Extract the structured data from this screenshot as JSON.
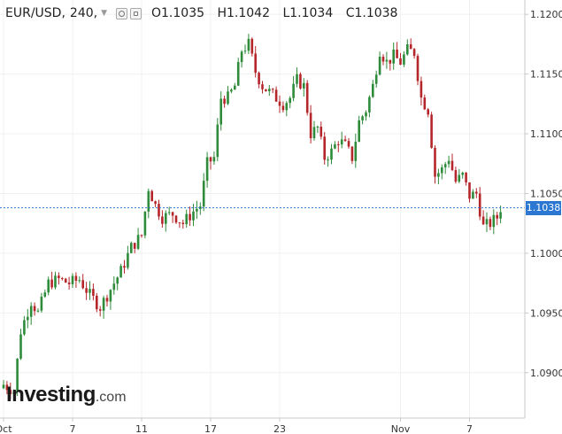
{
  "header": {
    "symbol": "EUR/USD,",
    "interval": "240,",
    "open_text": "O1.1035",
    "high_text": "H1.1042",
    "low_text": "L1.1034",
    "close_text": "C1.1038"
  },
  "logo": {
    "main": "Investing",
    "domain": ".com"
  },
  "colors": {
    "up": "#2e8b3a",
    "down": "#b5262a",
    "last_price": "#2c77d2",
    "grid": "#f0f0f0",
    "axis_text": "#333333"
  },
  "chart_data": {
    "type": "candlestick",
    "title": "",
    "xlabel": "",
    "ylabel": "",
    "ylim": [
      1.0862,
      1.1212
    ],
    "yticks": [
      1.09,
      1.095,
      1.1,
      1.105,
      1.11,
      1.115,
      1.12
    ],
    "ytick_labels": [
      "1.0900",
      "1.0950",
      "1.1000",
      "1.1050",
      "1.1100",
      "1.1150",
      "1.1200"
    ],
    "xticks": [
      {
        "label": "Oct",
        "index": 0
      },
      {
        "label": "7",
        "index": 20
      },
      {
        "label": "11",
        "index": 40
      },
      {
        "label": "17",
        "index": 60
      },
      {
        "label": "23",
        "index": 80
      },
      {
        "label": "Nov",
        "index": 115
      },
      {
        "label": "7",
        "index": 135
      }
    ],
    "last_price": "1.1038",
    "waypoints": [
      [
        0,
        1.089
      ],
      [
        3,
        1.0885
      ],
      [
        5,
        1.0935
      ],
      [
        8,
        1.096
      ],
      [
        10,
        1.095
      ],
      [
        13,
        1.0975
      ],
      [
        16,
        1.0978
      ],
      [
        19,
        1.0975
      ],
      [
        22,
        1.0978
      ],
      [
        25,
        1.0965
      ],
      [
        28,
        1.0955
      ],
      [
        31,
        1.097
      ],
      [
        34,
        1.0985
      ],
      [
        37,
        1.1005
      ],
      [
        40,
        1.1015
      ],
      [
        42,
        1.1055
      ],
      [
        44,
        1.104
      ],
      [
        46,
        1.103
      ],
      [
        49,
        1.1033
      ],
      [
        52,
        1.1025
      ],
      [
        55,
        1.1035
      ],
      [
        57,
        1.104
      ],
      [
        59,
        1.1075
      ],
      [
        61,
        1.108
      ],
      [
        63,
        1.113
      ],
      [
        65,
        1.113
      ],
      [
        67,
        1.114
      ],
      [
        69,
        1.117
      ],
      [
        71,
        1.1175
      ],
      [
        73,
        1.1152
      ],
      [
        75,
        1.114
      ],
      [
        77,
        1.1135
      ],
      [
        79,
        1.113
      ],
      [
        81,
        1.1125
      ],
      [
        83,
        1.113
      ],
      [
        85,
        1.1145
      ],
      [
        87,
        1.114
      ],
      [
        89,
        1.11
      ],
      [
        91,
        1.1105
      ],
      [
        93,
        1.108
      ],
      [
        95,
        1.1085
      ],
      [
        97,
        1.1095
      ],
      [
        99,
        1.109
      ],
      [
        101,
        1.108
      ],
      [
        103,
        1.111
      ],
      [
        105,
        1.112
      ],
      [
        107,
        1.114
      ],
      [
        109,
        1.117
      ],
      [
        111,
        1.116
      ],
      [
        113,
        1.1165
      ],
      [
        115,
        1.116
      ],
      [
        117,
        1.117
      ],
      [
        119,
        1.1168
      ],
      [
        121,
        1.113
      ],
      [
        123,
        1.112
      ],
      [
        125,
        1.1065
      ],
      [
        127,
        1.107
      ],
      [
        129,
        1.108
      ],
      [
        131,
        1.106
      ],
      [
        133,
        1.1065
      ],
      [
        135,
        1.1048
      ],
      [
        137,
        1.105
      ],
      [
        139,
        1.1022
      ],
      [
        141,
        1.1025
      ],
      [
        143,
        1.103
      ],
      [
        144,
        1.1038
      ]
    ]
  }
}
